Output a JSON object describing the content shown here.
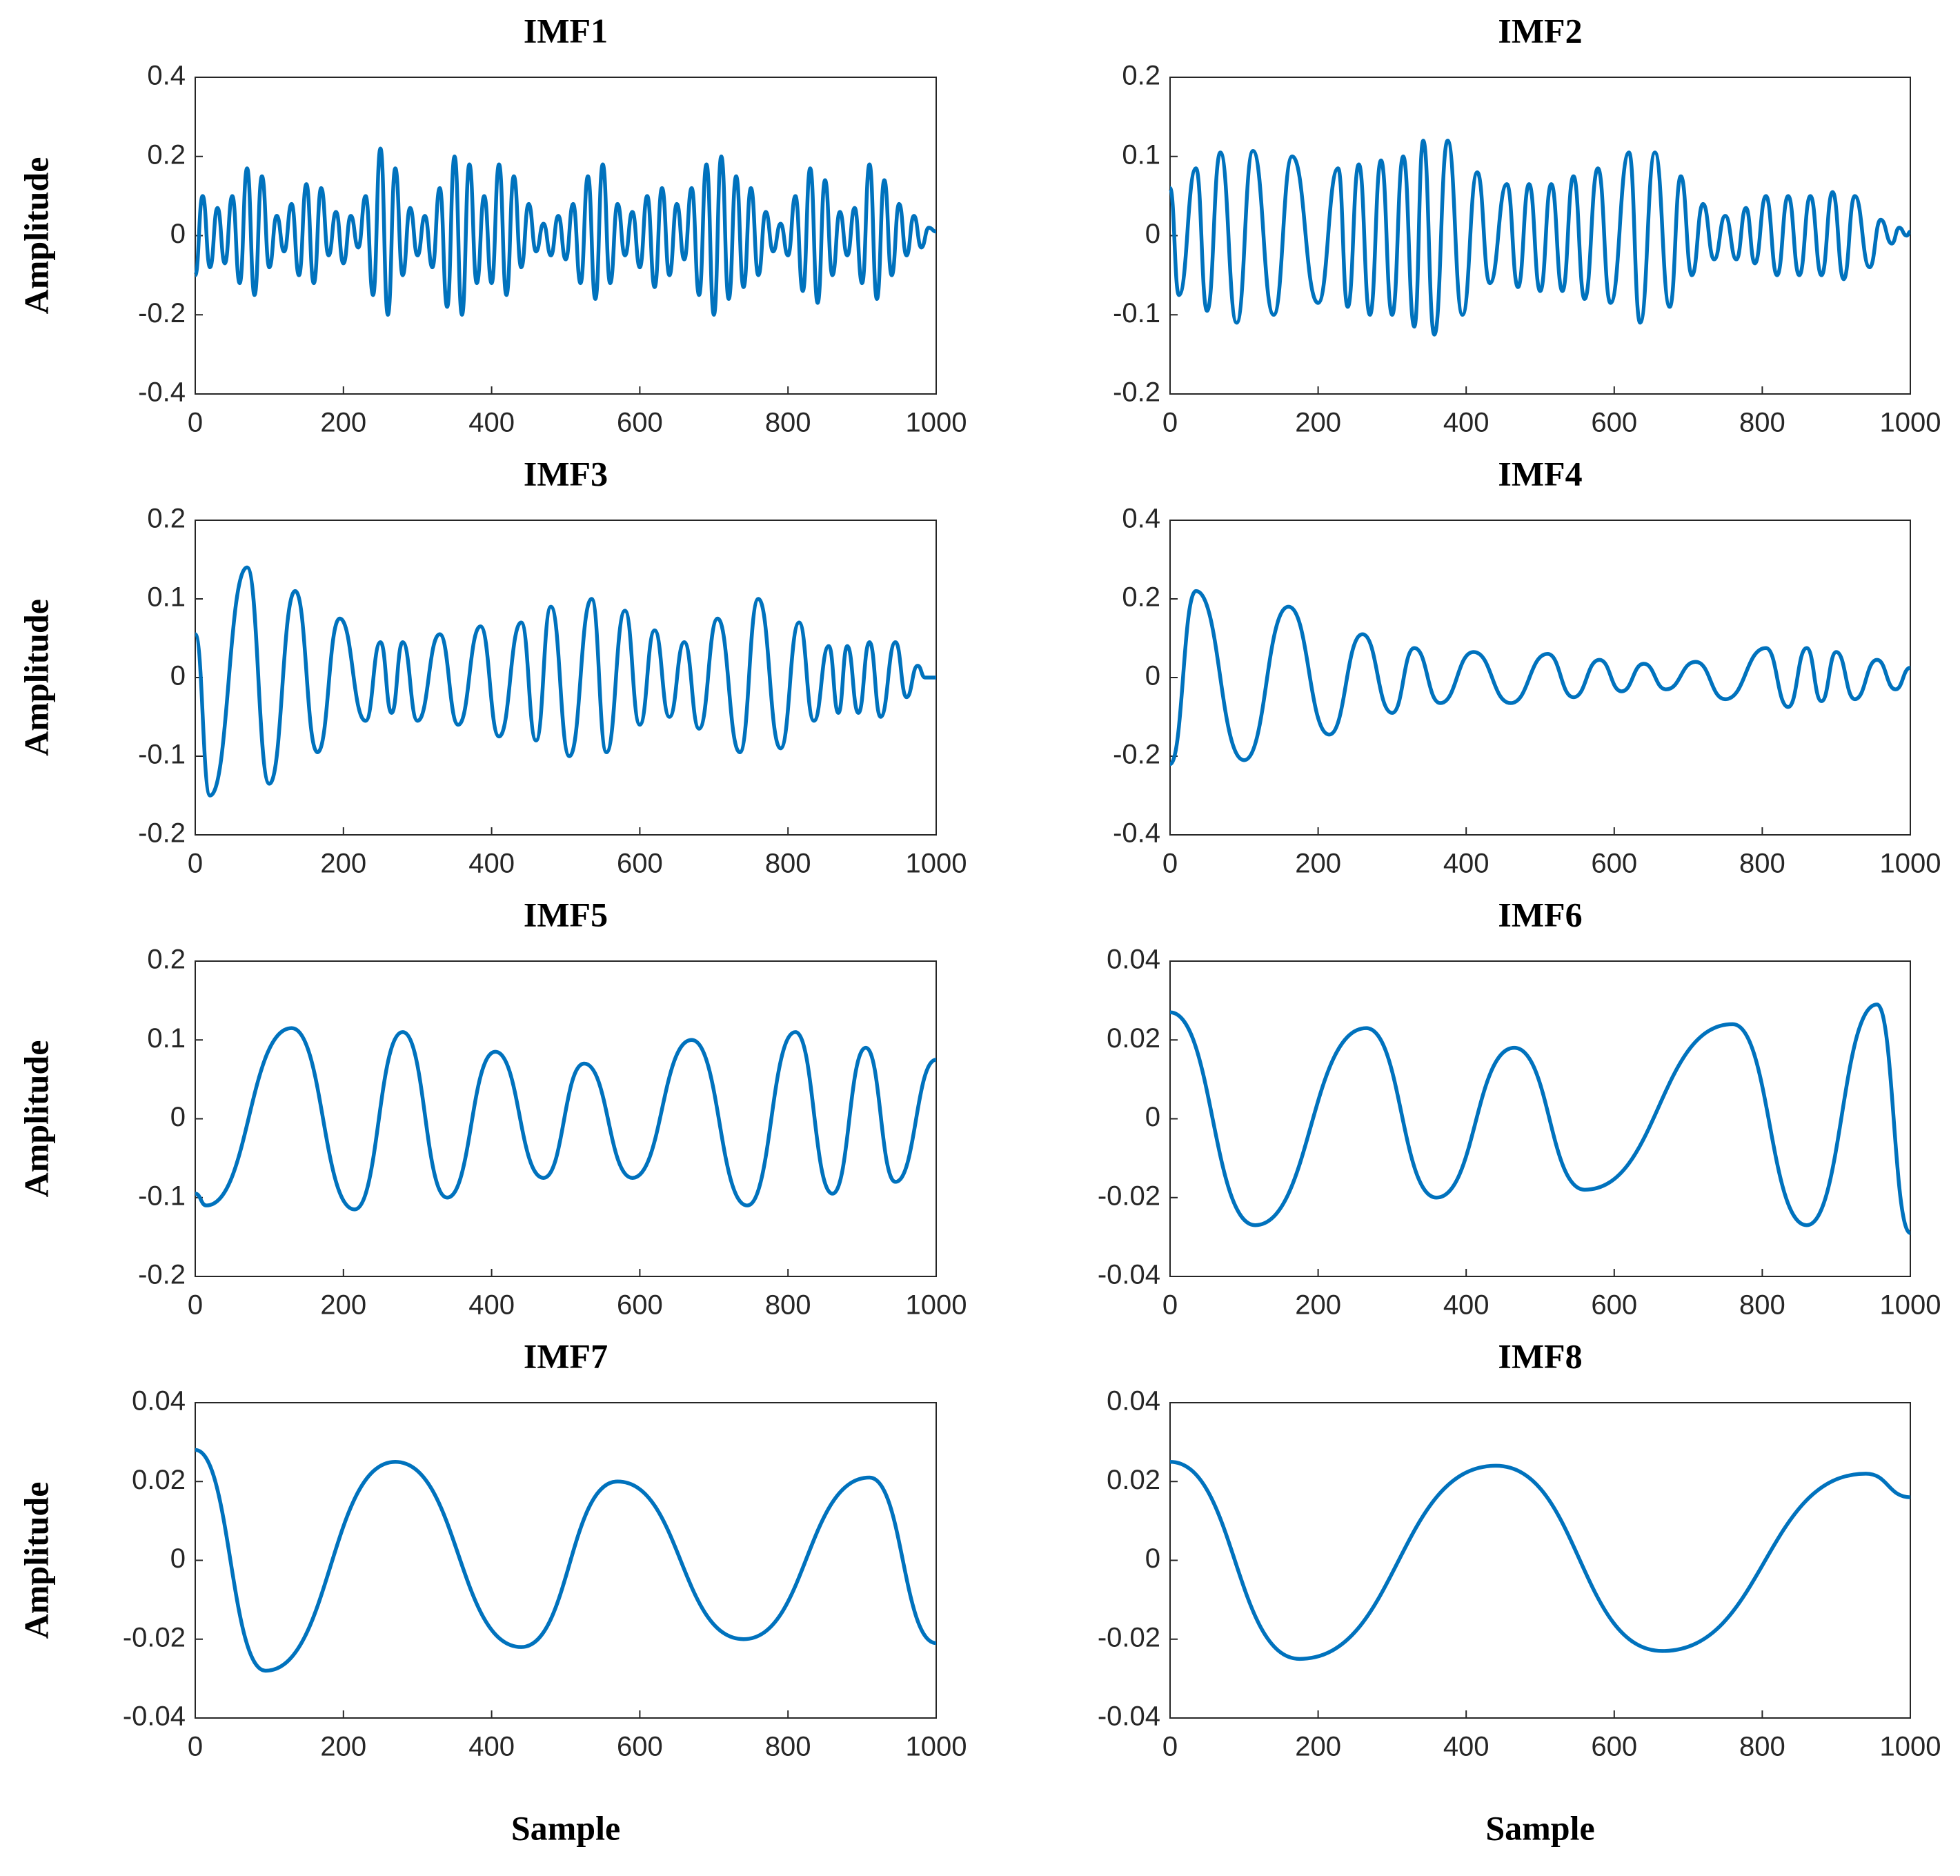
{
  "chart_data": [
    {
      "type": "line",
      "title": "IMF1",
      "ylabel": "Amplitude",
      "color": "#0072BD",
      "x": [
        0,
        10,
        20,
        30,
        40,
        50,
        60,
        70,
        80,
        90,
        100,
        110,
        120,
        130,
        140,
        150,
        160,
        170,
        180,
        190,
        200,
        210,
        220,
        230,
        240,
        250,
        260,
        270,
        280,
        290,
        300,
        310,
        320,
        330,
        340,
        350,
        360,
        370,
        380,
        390,
        400,
        410,
        420,
        430,
        440,
        450,
        460,
        470,
        480,
        490,
        500,
        510,
        520,
        530,
        540,
        550,
        560,
        570,
        580,
        590,
        600,
        610,
        620,
        630,
        640,
        650,
        660,
        670,
        680,
        690,
        700,
        710,
        720,
        730,
        740,
        750,
        760,
        770,
        780,
        790,
        800,
        810,
        820,
        830,
        840,
        850,
        860,
        870,
        880,
        890,
        900,
        910,
        920,
        930,
        940,
        950,
        960,
        970,
        980,
        990,
        1000
      ],
      "values": [
        -0.1,
        0.1,
        -0.08,
        0.07,
        -0.07,
        0.1,
        -0.12,
        0.17,
        -0.15,
        0.15,
        -0.08,
        0.05,
        -0.04,
        0.08,
        -0.1,
        0.13,
        -0.12,
        0.12,
        -0.05,
        0.06,
        -0.07,
        0.05,
        -0.03,
        0.1,
        -0.15,
        0.22,
        -0.2,
        0.17,
        -0.1,
        0.07,
        -0.05,
        0.05,
        -0.08,
        0.12,
        -0.18,
        0.2,
        -0.2,
        0.18,
        -0.12,
        0.1,
        -0.12,
        0.18,
        -0.15,
        0.15,
        -0.08,
        0.08,
        -0.04,
        0.03,
        -0.05,
        0.05,
        -0.06,
        0.08,
        -0.12,
        0.15,
        -0.16,
        0.18,
        -0.12,
        0.08,
        -0.05,
        0.06,
        -0.08,
        0.1,
        -0.13,
        0.12,
        -0.1,
        0.08,
        -0.06,
        0.12,
        -0.15,
        0.18,
        -0.2,
        0.2,
        -0.16,
        0.15,
        -0.13,
        0.12,
        -0.1,
        0.06,
        -0.04,
        0.03,
        -0.05,
        0.1,
        -0.14,
        0.17,
        -0.17,
        0.14,
        -0.1,
        0.06,
        -0.05,
        0.07,
        -0.12,
        0.18,
        -0.16,
        0.14,
        -0.1,
        0.08,
        -0.05,
        0.05,
        -0.03,
        0.02,
        0.01
      ],
      "xlim": [
        0,
        1000
      ],
      "xticks": [
        0,
        200,
        400,
        600,
        800,
        1000
      ],
      "ylim": [
        -0.4,
        0.4
      ],
      "yticks": [
        -0.4,
        -0.2,
        0,
        0.2,
        0.4
      ]
    },
    {
      "type": "line",
      "title": "IMF2",
      "color": "#0072BD",
      "x": [
        0,
        12,
        35,
        50,
        68,
        90,
        112,
        140,
        165,
        200,
        227,
        240,
        255,
        270,
        285,
        300,
        315,
        330,
        342,
        357,
        375,
        395,
        415,
        432,
        455,
        470,
        485,
        500,
        515,
        530,
        545,
        560,
        578,
        595,
        620,
        635,
        655,
        675,
        690,
        705,
        720,
        735,
        750,
        765,
        778,
        790,
        805,
        820,
        835,
        850,
        865,
        880,
        895,
        910,
        925,
        945,
        960,
        975,
        985,
        995,
        1000
      ],
      "values": [
        0.06,
        -0.075,
        0.085,
        -0.095,
        0.105,
        -0.11,
        0.107,
        -0.1,
        0.1,
        -0.085,
        0.085,
        -0.09,
        0.09,
        -0.1,
        0.095,
        -0.1,
        0.1,
        -0.115,
        0.12,
        -0.125,
        0.12,
        -0.1,
        0.08,
        -0.06,
        0.065,
        -0.065,
        0.065,
        -0.07,
        0.065,
        -0.07,
        0.075,
        -0.08,
        0.085,
        -0.085,
        0.105,
        -0.11,
        0.105,
        -0.09,
        0.075,
        -0.05,
        0.04,
        -0.03,
        0.025,
        -0.03,
        0.035,
        -0.035,
        0.05,
        -0.05,
        0.05,
        -0.05,
        0.05,
        -0.05,
        0.055,
        -0.055,
        0.05,
        -0.04,
        0.02,
        -0.01,
        0.01,
        0,
        0.005
      ],
      "xlim": [
        0,
        1000
      ],
      "xticks": [
        0,
        200,
        400,
        600,
        800,
        1000
      ],
      "ylim": [
        -0.2,
        0.2
      ],
      "yticks": [
        -0.2,
        -0.1,
        0,
        0.1,
        0.2
      ]
    },
    {
      "type": "line",
      "title": "IMF3",
      "ylabel": "Amplitude",
      "color": "#0072BD",
      "x": [
        0,
        20,
        70,
        100,
        135,
        165,
        195,
        230,
        250,
        265,
        280,
        300,
        330,
        355,
        385,
        410,
        440,
        460,
        480,
        505,
        535,
        555,
        580,
        600,
        620,
        640,
        660,
        680,
        705,
        735,
        760,
        790,
        815,
        835,
        855,
        868,
        880,
        895,
        910,
        925,
        945,
        960,
        975,
        985,
        1000
      ],
      "values": [
        0.055,
        -0.15,
        0.14,
        -0.135,
        0.11,
        -0.095,
        0.075,
        -0.055,
        0.045,
        -0.045,
        0.045,
        -0.055,
        0.055,
        -0.06,
        0.065,
        -0.075,
        0.07,
        -0.08,
        0.09,
        -0.1,
        0.1,
        -0.095,
        0.085,
        -0.06,
        0.06,
        -0.05,
        0.045,
        -0.065,
        0.075,
        -0.095,
        0.1,
        -0.09,
        0.07,
        -0.055,
        0.04,
        -0.045,
        0.04,
        -0.045,
        0.045,
        -0.05,
        0.045,
        -0.025,
        0.015,
        0,
        0
      ],
      "xlim": [
        0,
        1000
      ],
      "xticks": [
        0,
        200,
        400,
        600,
        800,
        1000
      ],
      "ylim": [
        -0.2,
        0.2
      ],
      "yticks": [
        -0.2,
        -0.1,
        0,
        0.1,
        0.2
      ]
    },
    {
      "type": "line",
      "title": "IMF4",
      "color": "#0072BD",
      "x": [
        0,
        35,
        100,
        160,
        215,
        260,
        300,
        330,
        365,
        410,
        460,
        510,
        545,
        580,
        610,
        640,
        670,
        710,
        750,
        805,
        835,
        860,
        880,
        900,
        925,
        955,
        980,
        1000
      ],
      "values": [
        -0.22,
        0.22,
        -0.21,
        0.18,
        -0.145,
        0.11,
        -0.09,
        0.075,
        -0.065,
        0.065,
        -0.065,
        0.06,
        -0.05,
        0.045,
        -0.035,
        0.035,
        -0.03,
        0.04,
        -0.055,
        0.075,
        -0.075,
        0.075,
        -0.06,
        0.065,
        -0.055,
        0.045,
        -0.03,
        0.025
      ],
      "xlim": [
        0,
        1000
      ],
      "xticks": [
        0,
        200,
        400,
        600,
        800,
        1000
      ],
      "ylim": [
        -0.4,
        0.4
      ],
      "yticks": [
        -0.4,
        -0.2,
        0,
        0.2,
        0.4
      ]
    },
    {
      "type": "line",
      "title": "IMF5",
      "ylabel": "Amplitude",
      "color": "#0072BD",
      "x": [
        0,
        15,
        130,
        215,
        280,
        340,
        405,
        470,
        525,
        590,
        670,
        745,
        810,
        860,
        905,
        945,
        1000
      ],
      "values": [
        -0.095,
        -0.11,
        0.115,
        -0.115,
        0.11,
        -0.1,
        0.085,
        -0.075,
        0.07,
        -0.075,
        0.1,
        -0.11,
        0.11,
        -0.095,
        0.09,
        -0.08,
        0.075
      ],
      "xlim": [
        0,
        1000
      ],
      "xticks": [
        0,
        200,
        400,
        600,
        800,
        1000
      ],
      "ylim": [
        -0.2,
        0.2
      ],
      "yticks": [
        -0.2,
        -0.1,
        0,
        0.1,
        0.2
      ]
    },
    {
      "type": "line",
      "title": "IMF6",
      "color": "#0072BD",
      "x": [
        0,
        115,
        265,
        360,
        465,
        560,
        760,
        860,
        955,
        1000
      ],
      "values": [
        0.027,
        -0.027,
        0.023,
        -0.02,
        0.018,
        -0.018,
        0.024,
        -0.027,
        0.029,
        -0.029
      ],
      "xlim": [
        0,
        1000
      ],
      "xticks": [
        0,
        200,
        400,
        600,
        800,
        1000
      ],
      "ylim": [
        -0.04,
        0.04
      ],
      "yticks": [
        -0.04,
        -0.02,
        0,
        0.02,
        0.04
      ]
    },
    {
      "type": "line",
      "title": "IMF7",
      "ylabel": "Amplitude",
      "xlabel": "Sample",
      "color": "#0072BD",
      "x": [
        0,
        95,
        270,
        440,
        570,
        740,
        910,
        1000
      ],
      "values": [
        0.028,
        -0.028,
        0.025,
        -0.022,
        0.02,
        -0.02,
        0.021,
        -0.021
      ],
      "xlim": [
        0,
        1000
      ],
      "xticks": [
        0,
        200,
        400,
        600,
        800,
        1000
      ],
      "ylim": [
        -0.04,
        0.04
      ],
      "yticks": [
        -0.04,
        -0.02,
        0,
        0.02,
        0.04
      ]
    },
    {
      "type": "line",
      "title": "IMF8",
      "xlabel": "Sample",
      "color": "#0072BD",
      "x": [
        0,
        175,
        440,
        665,
        940,
        1000
      ],
      "values": [
        0.025,
        -0.025,
        0.024,
        -0.023,
        0.022,
        0.016
      ],
      "xlim": [
        0,
        1000
      ],
      "xticks": [
        0,
        200,
        400,
        600,
        800,
        1000
      ],
      "ylim": [
        -0.04,
        0.04
      ],
      "yticks": [
        -0.04,
        -0.02,
        0,
        0.02,
        0.04
      ]
    }
  ]
}
